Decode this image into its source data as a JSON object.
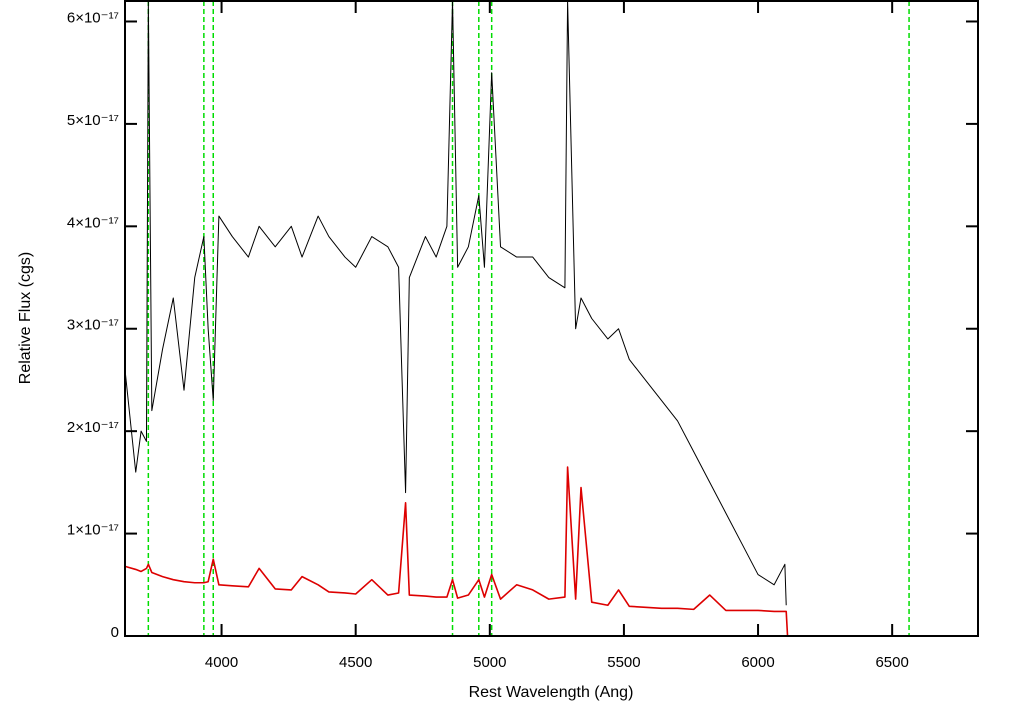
{
  "chart_data": {
    "type": "line",
    "xlabel": "Rest Wavelength (Ang)",
    "ylabel": "Relative Flux (cgs)",
    "xlim": [
      3640,
      6820
    ],
    "ylim": [
      0,
      6.2e-17
    ],
    "xticks": [
      4000,
      4500,
      5000,
      5500,
      6000,
      6500
    ],
    "yticks": [
      0,
      {
        "value": 1e-17,
        "label": "1×10⁻¹⁷"
      },
      {
        "value": 2e-17,
        "label": "2×10⁻¹⁷"
      },
      {
        "value": 3e-17,
        "label": "3×10⁻¹⁷"
      },
      {
        "value": 4e-17,
        "label": "4×10⁻¹⁷"
      },
      {
        "value": 5e-17,
        "label": "5×10⁻¹⁷"
      },
      {
        "value": 6e-17,
        "label": "6×10⁻¹⁷"
      }
    ],
    "vlines": [
      3727,
      3934,
      3969,
      4861,
      4959,
      5007,
      6563
    ],
    "vline_color": "#00dd00",
    "x": [
      3640,
      3680,
      3700,
      3720,
      3727,
      3740,
      3780,
      3820,
      3860,
      3900,
      3934,
      3950,
      3969,
      3990,
      4040,
      4100,
      4140,
      4200,
      4260,
      4300,
      4360,
      4400,
      4460,
      4500,
      4560,
      4620,
      4660,
      4686,
      4700,
      4760,
      4800,
      4840,
      4861,
      4880,
      4920,
      4959,
      4980,
      5007,
      5040,
      5100,
      5160,
      5220,
      5280,
      5290,
      5320,
      5340,
      5380,
      5440,
      5480,
      5520,
      5580,
      5640,
      5700,
      5760,
      5820,
      5880,
      5940,
      6000,
      6060,
      6100,
      6105,
      6110,
      6820
    ],
    "series": [
      {
        "color": "#000000",
        "values": [
          2.6e-17,
          1.6e-17,
          2e-17,
          1.9e-17,
          6.2e-17,
          2.2e-17,
          2.8e-17,
          3.3e-17,
          2.4e-17,
          3.5e-17,
          3.9e-17,
          3e-17,
          2.3e-17,
          4.1e-17,
          3.9e-17,
          3.7e-17,
          4e-17,
          3.8e-17,
          4e-17,
          3.7e-17,
          4.1e-17,
          3.9e-17,
          3.7e-17,
          3.6e-17,
          3.9e-17,
          3.8e-17,
          3.6e-17,
          1.4e-17,
          3.5e-17,
          3.9e-17,
          3.7e-17,
          4e-17,
          6.2e-17,
          3.6e-17,
          3.8e-17,
          4.3e-17,
          3.6e-17,
          5.5e-17,
          3.8e-17,
          3.7e-17,
          3.7e-17,
          3.5e-17,
          3.4e-17,
          6.2e-17,
          3e-17,
          3.3e-17,
          3.1e-17,
          2.9e-17,
          3e-17,
          2.7e-17,
          2.5e-17,
          2.3e-17,
          2.1e-17,
          1.8e-17,
          1.5e-17,
          1.2e-17,
          9e-18,
          6e-18,
          5e-18,
          7e-18,
          3e-18,
          null,
          null
        ]
      },
      {
        "color": "#dd0000",
        "values": [
          6.8e-18,
          6.5e-18,
          6.3e-18,
          6.6e-18,
          7e-18,
          6.2e-18,
          5.8e-18,
          5.5e-18,
          5.3e-18,
          5.2e-18,
          5.2e-18,
          5.3e-18,
          7.5e-18,
          5e-18,
          4.9e-18,
          4.8e-18,
          6.6e-18,
          4.6e-18,
          4.5e-18,
          5.8e-18,
          5e-18,
          4.3e-18,
          4.2e-18,
          4.1e-18,
          5.5e-18,
          4e-18,
          4.2e-18,
          1.3e-17,
          4e-18,
          3.9e-18,
          3.8e-18,
          3.8e-18,
          5.5e-18,
          3.7e-18,
          4e-18,
          5.5e-18,
          3.8e-18,
          6e-18,
          3.6e-18,
          5e-18,
          4.5e-18,
          3.6e-18,
          3.8e-18,
          1.65e-17,
          3.6e-18,
          1.45e-17,
          3.3e-18,
          3e-18,
          4.5e-18,
          2.9e-18,
          2.8e-18,
          2.7e-18,
          2.7e-18,
          2.6e-18,
          4e-18,
          2.5e-18,
          2.5e-18,
          2.5e-18,
          2.4e-18,
          2.4e-18,
          2.4e-18,
          0,
          0
        ]
      }
    ]
  }
}
